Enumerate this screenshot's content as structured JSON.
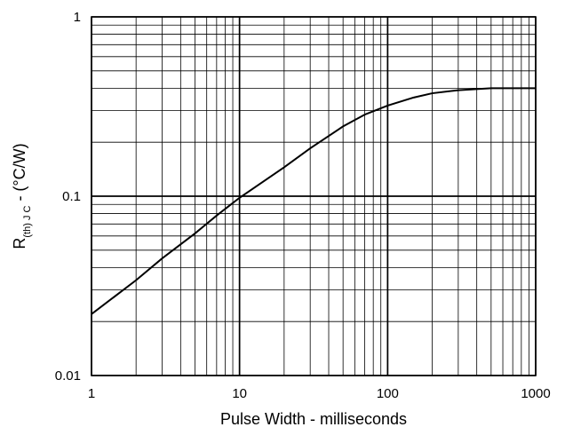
{
  "chart_data": {
    "type": "line",
    "title": "",
    "xlabel": "Pulse Width - milliseconds",
    "ylabel": {
      "prefix": "R",
      "subscript": "(th) J C",
      "suffix": " - (°C/W)"
    },
    "x_scale": "log",
    "y_scale": "log",
    "xlim": [
      1,
      1000
    ],
    "ylim": [
      0.01,
      1
    ],
    "grid": true,
    "legend": "none",
    "x_ticks": [
      {
        "value": 1,
        "label": "1"
      },
      {
        "value": 10,
        "label": "10"
      },
      {
        "value": 100,
        "label": "100"
      },
      {
        "value": 1000,
        "label": "1000"
      }
    ],
    "y_ticks": [
      {
        "value": 0.01,
        "label": "0.01"
      },
      {
        "value": 0.1,
        "label": "0.1"
      },
      {
        "value": 1,
        "label": "1"
      }
    ],
    "series": [
      {
        "x": [
          1,
          2,
          3,
          5,
          7,
          10,
          20,
          30,
          50,
          70,
          100,
          150,
          200,
          300,
          500,
          700,
          1000
        ],
        "y": [
          0.022,
          0.034,
          0.045,
          0.062,
          0.078,
          0.098,
          0.145,
          0.185,
          0.245,
          0.285,
          0.32,
          0.355,
          0.375,
          0.39,
          0.4,
          0.4,
          0.4
        ]
      }
    ]
  },
  "colors": {
    "background": "#ffffff",
    "line": "#000000",
    "grid": "#000000"
  }
}
